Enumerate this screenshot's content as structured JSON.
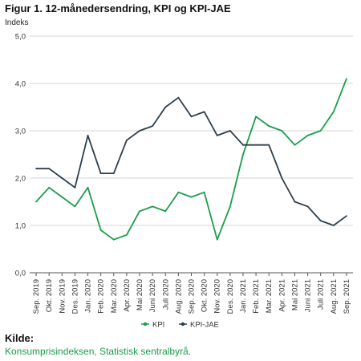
{
  "chart_data": {
    "type": "line",
    "title": "Figur 1. 12-månedersendring, KPI og KPI-JAE",
    "ylabel": "Indeks",
    "ylim": [
      0,
      5
    ],
    "yticks": [
      "0,0",
      "1,0",
      "2,0",
      "3,0",
      "4,0",
      "5,0"
    ],
    "grid": "horizontal",
    "legend_placement": "bottom",
    "categories": [
      "Sep. 2019",
      "Okt. 2019",
      "Nov. 2019",
      "Des. 2019",
      "Jan. 2020",
      "Feb. 2020",
      "Mar. 2020",
      "Apr. 2020",
      "Mai 2020",
      "Juni 2020",
      "Juli 2020",
      "Aug. 2020",
      "Sep. 2020",
      "Okt. 2020",
      "Nov. 2020",
      "Des. 2020",
      "Jan. 2021",
      "Feb. 2021",
      "Mar. 2021",
      "Apr. 2021",
      "Mai 2021",
      "Juni 2021",
      "Juli 2021",
      "Aug. 2021",
      "Sep. 2021"
    ],
    "series": [
      {
        "name": "KPI",
        "color": "#1a9d49",
        "values": [
          1.5,
          1.8,
          1.6,
          1.4,
          1.8,
          0.9,
          0.7,
          0.8,
          1.3,
          1.4,
          1.3,
          1.7,
          1.6,
          1.7,
          0.7,
          1.4,
          2.5,
          3.3,
          3.1,
          3.0,
          2.7,
          2.9,
          3.0,
          3.4,
          4.1
        ]
      },
      {
        "name": "KPI-JAE",
        "color": "#2d3e4b",
        "values": [
          2.2,
          2.2,
          2.0,
          1.8,
          2.9,
          2.1,
          2.1,
          2.8,
          3.0,
          3.1,
          3.5,
          3.7,
          3.3,
          3.4,
          2.9,
          3.0,
          2.7,
          2.7,
          2.7,
          2.0,
          1.5,
          1.4,
          1.1,
          1.0,
          1.2
        ]
      }
    ]
  },
  "source": {
    "heading": "Kilde:",
    "text": "Konsumprisindeksen, Statistisk sentralbyrå."
  }
}
